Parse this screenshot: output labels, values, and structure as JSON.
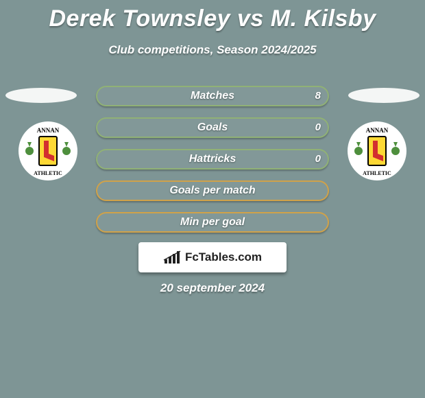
{
  "background_color": "#7e9595",
  "title": "Derek Townsley vs M. Kilsby",
  "subtitle": "Club competitions, Season 2024/2025",
  "date_text": "20 september 2024",
  "brand": {
    "text": "FcTables.com",
    "card_bg": "#ffffff",
    "text_color": "#202020"
  },
  "pill_fill": "#829898",
  "pill_border_main": "#90b176",
  "pill_border_alt": "#d0a24a",
  "avatar_ellipse_fill": "#f4f6f5",
  "club": {
    "name": "Annan Athletic",
    "top_text": "ANNAN",
    "bottom_text": "ATHLETIC",
    "outer_bg": "#ffffff",
    "flag_bg": "#fdd835",
    "flag_border": "#000000",
    "boot_color": "#d32f2f",
    "text_color": "#000000",
    "thistle_color": "#4e8f3d"
  },
  "stats": [
    {
      "label": "Matches",
      "right_value": "8",
      "border": "main"
    },
    {
      "label": "Goals",
      "right_value": "0",
      "border": "main"
    },
    {
      "label": "Hattricks",
      "right_value": "0",
      "border": "main"
    },
    {
      "label": "Goals per match",
      "right_value": "",
      "border": "alt"
    },
    {
      "label": "Min per goal",
      "right_value": "",
      "border": "alt"
    }
  ]
}
